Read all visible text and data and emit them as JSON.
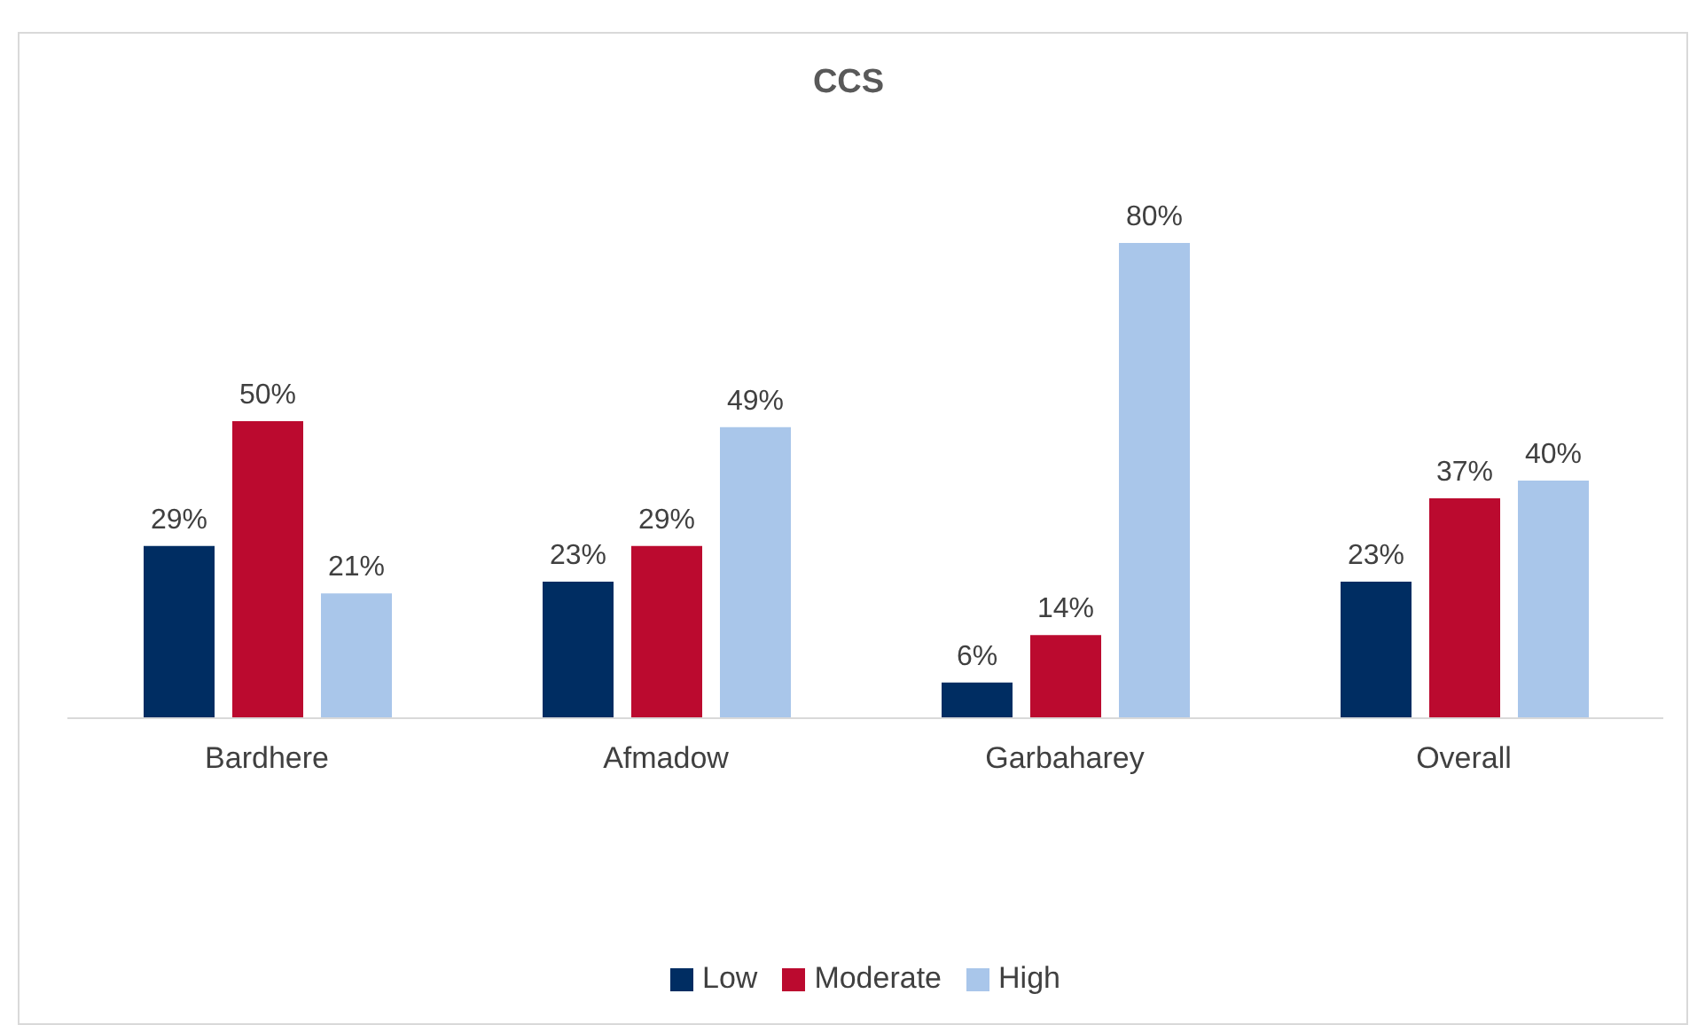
{
  "chart_data": {
    "type": "bar",
    "title": "CCS",
    "categories": [
      "Bardhere",
      "Afmadow",
      "Garbaharey",
      "Overall"
    ],
    "series": [
      {
        "name": "Low",
        "color": "#002d62",
        "values": [
          29,
          23,
          6,
          23
        ],
        "value_labels": [
          "29%",
          "23%",
          "6%",
          "23%"
        ]
      },
      {
        "name": "Moderate",
        "color": "#bb0a2f",
        "values": [
          50,
          29,
          14,
          37
        ],
        "value_labels": [
          "50%",
          "29%",
          "14%",
          "37%"
        ]
      },
      {
        "name": "High",
        "color": "#a9c6ea",
        "values": [
          21,
          49,
          80,
          40
        ],
        "value_labels": [
          "21%",
          "49%",
          "80%",
          "40%"
        ]
      }
    ],
    "legend": "bottom",
    "grid": false
  }
}
